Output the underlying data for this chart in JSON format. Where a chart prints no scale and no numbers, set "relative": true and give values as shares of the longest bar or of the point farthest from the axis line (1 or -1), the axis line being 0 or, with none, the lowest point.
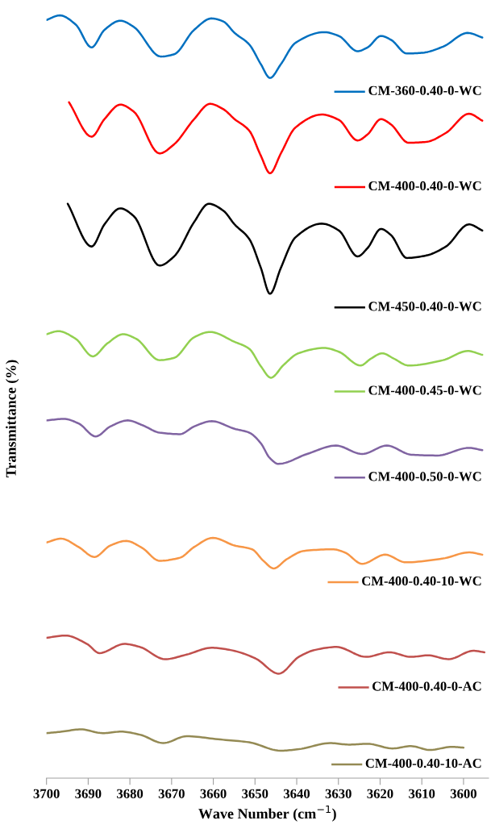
{
  "chart_data": {
    "type": "line",
    "relative": true,
    "ylabel": "Transmittance (%)",
    "xlabel": "Wave Number (cm$^{−1}$)",
    "xlim": [
      3700,
      3594
    ],
    "xticks": [
      3700,
      3690,
      3680,
      3670,
      3660,
      3650,
      3640,
      3630,
      3620,
      3610,
      3600
    ],
    "tick_labels": "x",
    "grid": false,
    "legend": "right",
    "marker": "none",
    "line_style": "solid",
    "series": [
      {
        "name": "CM-360-0.40-0-WC",
        "color": "#0070c0",
        "x": [
          3700,
          3696.8,
          3693.0,
          3689.2,
          3686.1,
          3682.3,
          3679.1,
          3672.6,
          3669.4,
          3664.6,
          3660.4,
          3657.6,
          3654.9,
          3651.4,
          3648.6,
          3646.4,
          3643.8,
          3640.3,
          3633.4,
          3629.9,
          3625.4,
          3623.0,
          3619.8,
          3617.4,
          3613.6,
          3609.8,
          3604.9,
          3599.0,
          3595.5
        ],
        "values": [
          0.994,
          1.0,
          0.988,
          0.958,
          0.981,
          0.993,
          0.985,
          0.946,
          0.949,
          0.981,
          0.996,
          0.992,
          0.977,
          0.962,
          0.936,
          0.918,
          0.936,
          0.964,
          0.978,
          0.973,
          0.953,
          0.958,
          0.973,
          0.968,
          0.95,
          0.951,
          0.959,
          0.977,
          0.971
        ]
      },
      {
        "name": "CM-400-0.40-0-WC",
        "color": "#ff0000",
        "x": [
          3694.6,
          3689.2,
          3686.1,
          3682.3,
          3679.1,
          3672.9,
          3669.4,
          3664.6,
          3660.8,
          3657.6,
          3654.9,
          3651.4,
          3648.6,
          3646.4,
          3643.8,
          3640.3,
          3634.0,
          3629.9,
          3625.4,
          3623.0,
          3619.8,
          3617.4,
          3613.2,
          3609.1,
          3604.2,
          3598.7,
          3595.5
        ],
        "values": [
          0.886,
          0.841,
          0.864,
          0.883,
          0.874,
          0.819,
          0.831,
          0.864,
          0.884,
          0.877,
          0.864,
          0.849,
          0.816,
          0.793,
          0.819,
          0.853,
          0.87,
          0.863,
          0.836,
          0.844,
          0.864,
          0.857,
          0.833,
          0.834,
          0.846,
          0.871,
          0.862
        ]
      },
      {
        "name": "CM-450-0.40-0-WC",
        "color": "#000000",
        "x": [
          3694.9,
          3689.2,
          3686.1,
          3682.3,
          3679.1,
          3672.9,
          3669.4,
          3664.6,
          3661.1,
          3657.6,
          3654.9,
          3651.4,
          3648.6,
          3646.4,
          3643.8,
          3640.3,
          3634.0,
          3629.9,
          3625.4,
          3623.0,
          3619.8,
          3617.4,
          3613.6,
          3609.1,
          3604.2,
          3598.7,
          3595.5
        ],
        "values": [
          0.753,
          0.697,
          0.726,
          0.747,
          0.737,
          0.672,
          0.684,
          0.729,
          0.753,
          0.744,
          0.726,
          0.707,
          0.669,
          0.635,
          0.669,
          0.709,
          0.727,
          0.718,
          0.684,
          0.695,
          0.72,
          0.712,
          0.682,
          0.685,
          0.697,
          0.726,
          0.718
        ]
      },
      {
        "name": "CM-400-0.45-0-WC",
        "color": "#92d050",
        "x": [
          3700,
          3697.2,
          3693.0,
          3688.9,
          3685.4,
          3681.6,
          3678.5,
          3672.9,
          3669.4,
          3664.6,
          3660.8,
          3654.9,
          3651.4,
          3648.6,
          3646.2,
          3643.1,
          3639.6,
          3633.4,
          3629.9,
          3624.7,
          3622.2,
          3619.5,
          3616.7,
          3613.2,
          3604.9,
          3599.0,
          3595.5
        ],
        "values": [
          0.582,
          0.586,
          0.576,
          0.553,
          0.57,
          0.582,
          0.576,
          0.548,
          0.551,
          0.578,
          0.585,
          0.572,
          0.563,
          0.54,
          0.525,
          0.542,
          0.557,
          0.564,
          0.559,
          0.541,
          0.55,
          0.557,
          0.55,
          0.541,
          0.548,
          0.56,
          0.555
        ]
      },
      {
        "name": "CM-400-0.50-0-WC",
        "color": "#8064a2",
        "x": [
          3700,
          3695.8,
          3692.3,
          3688.2,
          3684.7,
          3680.5,
          3677.1,
          3672.9,
          3668.0,
          3664.6,
          3660.4,
          3654.9,
          3651.4,
          3648.6,
          3646.5,
          3644.4,
          3637.5,
          3630.6,
          3624.3,
          3618.4,
          3612.5,
          3606.3,
          3598.7,
          3595.5
        ],
        "values": [
          0.469,
          0.471,
          0.465,
          0.448,
          0.461,
          0.469,
          0.463,
          0.453,
          0.451,
          0.461,
          0.468,
          0.458,
          0.453,
          0.439,
          0.42,
          0.412,
          0.425,
          0.436,
          0.425,
          0.436,
          0.424,
          0.423,
          0.433,
          0.43
        ]
      },
      {
        "name": "CM-400-0.40-10-WC",
        "color": "#f79646",
        "x": [
          3700,
          3696.5,
          3692.3,
          3688.5,
          3684.7,
          3680.9,
          3677.1,
          3672.9,
          3668.0,
          3664.6,
          3660.1,
          3654.9,
          3650.7,
          3648.0,
          3645.5,
          3642.4,
          3638.2,
          3631.3,
          3628.5,
          3624.3,
          3618.8,
          3613.9,
          3604.9,
          3598.7,
          3595.5
        ],
        "values": [
          0.309,
          0.314,
          0.303,
          0.29,
          0.305,
          0.311,
          0.302,
          0.285,
          0.289,
          0.303,
          0.315,
          0.305,
          0.3,
          0.285,
          0.275,
          0.287,
          0.298,
          0.3,
          0.296,
          0.281,
          0.293,
          0.283,
          0.288,
          0.296,
          0.293
        ]
      },
      {
        "name": "CM-400-0.40-0-AC",
        "color": "#c0504d",
        "x": [
          3700,
          3695.5,
          3690.3,
          3687.3,
          3681.3,
          3677.6,
          3671.6,
          3666.4,
          3660.4,
          3655.9,
          3649.9,
          3644.3,
          3639.5,
          3635.7,
          3630.5,
          3623.4,
          3617.8,
          3612.6,
          3608.5,
          3603.6,
          3597.6,
          3595.0
        ],
        "values": [
          0.184,
          0.187,
          0.176,
          0.164,
          0.176,
          0.172,
          0.156,
          0.162,
          0.171,
          0.168,
          0.157,
          0.137,
          0.159,
          0.168,
          0.172,
          0.159,
          0.165,
          0.159,
          0.161,
          0.156,
          0.167,
          0.165
        ]
      },
      {
        "name": "CM-400-0.40-10-AC",
        "color": "#948a54",
        "x": [
          3700,
          3696.3,
          3691.8,
          3686.5,
          3682.1,
          3677.6,
          3672.0,
          3666.4,
          3658.9,
          3651.4,
          3643.9,
          3639.5,
          3632.0,
          3627.5,
          3623.0,
          3617.0,
          3612.6,
          3608.1,
          3602.8,
          3600.0
        ],
        "values": [
          0.059,
          0.061,
          0.064,
          0.059,
          0.061,
          0.057,
          0.046,
          0.055,
          0.051,
          0.047,
          0.036,
          0.038,
          0.046,
          0.044,
          0.045,
          0.039,
          0.042,
          0.037,
          0.041,
          0.04
        ]
      }
    ]
  }
}
